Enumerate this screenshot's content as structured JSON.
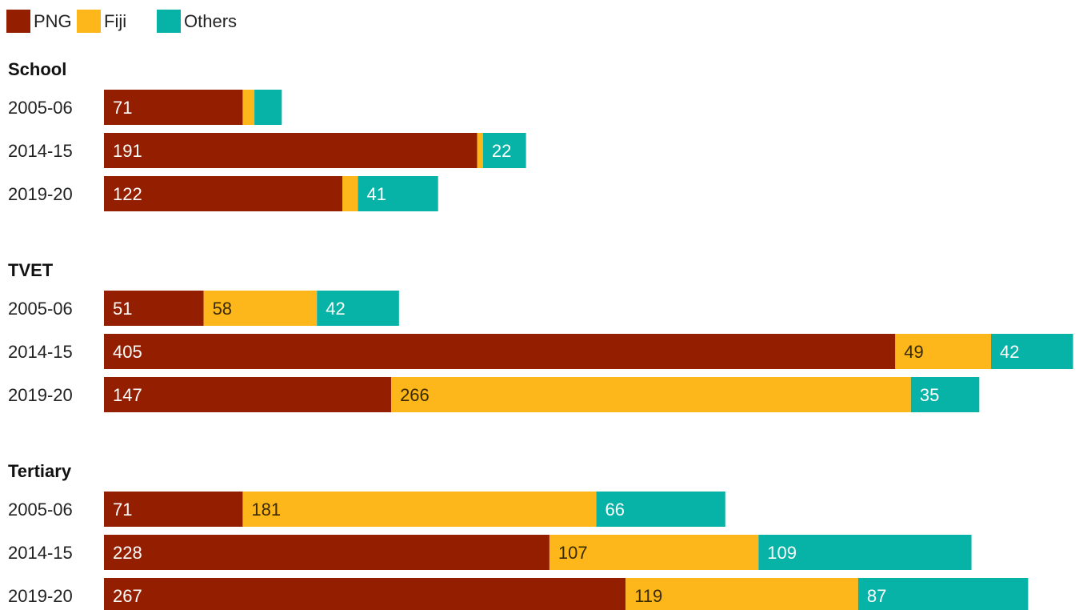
{
  "chart_data": {
    "type": "bar",
    "orientation": "horizontal",
    "stacked": true,
    "legend": {
      "placement": "top-left",
      "items": [
        {
          "name": "PNG",
          "color": "#931f00"
        },
        {
          "name": "Fiji",
          "color": "#fdb71a"
        },
        {
          "name": "Others",
          "color": "#07b3a7"
        }
      ]
    },
    "groups": [
      {
        "title": "School",
        "rows": [
          {
            "year": "2005-06",
            "values": [
              71,
              6,
              14
            ],
            "labels": [
              "71",
              "",
              ""
            ]
          },
          {
            "year": "2014-15",
            "values": [
              191,
              3,
              22
            ],
            "labels": [
              "191",
              "",
              "22"
            ]
          },
          {
            "year": "2019-20",
            "values": [
              122,
              8,
              41
            ],
            "labels": [
              "122",
              "",
              "41"
            ]
          }
        ]
      },
      {
        "title": "TVET",
        "rows": [
          {
            "year": "2005-06",
            "values": [
              51,
              58,
              42
            ],
            "labels": [
              "51",
              "58",
              "42"
            ]
          },
          {
            "year": "2014-15",
            "values": [
              405,
              49,
              42
            ],
            "labels": [
              "405",
              "49",
              "42"
            ]
          },
          {
            "year": "2019-20",
            "values": [
              147,
              266,
              35
            ],
            "labels": [
              "147",
              "266",
              "35"
            ]
          }
        ]
      },
      {
        "title": "Tertiary",
        "rows": [
          {
            "year": "2005-06",
            "values": [
              71,
              181,
              66
            ],
            "labels": [
              "71",
              "181",
              "66"
            ]
          },
          {
            "year": "2014-15",
            "values": [
              228,
              107,
              109
            ],
            "labels": [
              "228",
              "107",
              "109"
            ]
          },
          {
            "year": "2019-20",
            "values": [
              267,
              119,
              87
            ],
            "labels": [
              "267",
              "119",
              "87"
            ]
          }
        ]
      }
    ],
    "label_colors": [
      "#ffffff",
      "#3a2a00",
      "#ffffff"
    ]
  }
}
